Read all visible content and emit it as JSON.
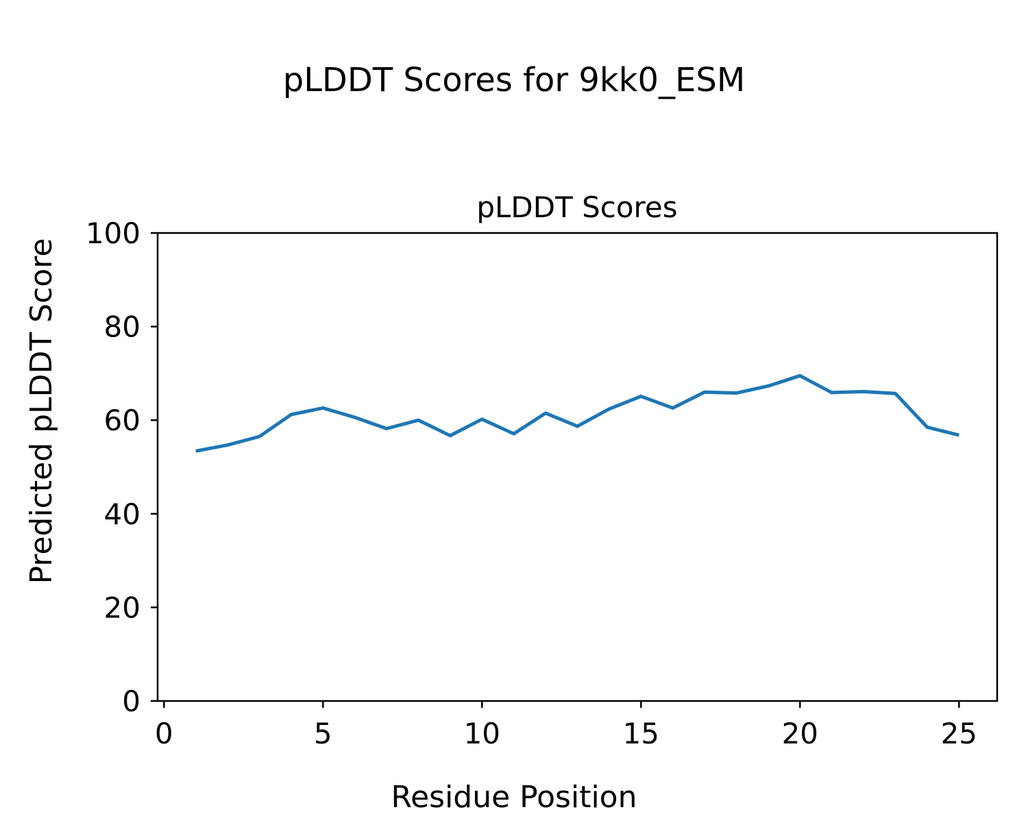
{
  "figure": {
    "suptitle": "pLDDT Scores for 9kk0_ESM",
    "background_color": "#ffffff",
    "text_color": "#000000"
  },
  "chart_data": {
    "type": "line",
    "title": "pLDDT Scores",
    "xlabel": "Residue Position",
    "ylabel": "Predicted pLDDT Score",
    "x": [
      1,
      2,
      3,
      4,
      5,
      6,
      7,
      8,
      9,
      10,
      11,
      12,
      13,
      14,
      15,
      16,
      17,
      18,
      19,
      20,
      21,
      22,
      23,
      24,
      25
    ],
    "y": [
      53.4,
      54.7,
      56.5,
      61.2,
      62.6,
      60.6,
      58.2,
      60.0,
      56.7,
      60.2,
      57.1,
      61.5,
      58.7,
      62.4,
      65.1,
      62.6,
      66.0,
      65.8,
      67.3,
      69.5,
      65.9,
      66.1,
      65.7,
      58.5,
      56.8
    ],
    "series_name": "pLDDT",
    "xlim": [
      -0.2,
      26.2
    ],
    "ylim": [
      0,
      100
    ],
    "xticks": [
      0,
      5,
      10,
      15,
      20,
      25
    ],
    "yticks": [
      0,
      20,
      40,
      60,
      80,
      100
    ],
    "line_color": "#1f77b4",
    "line_width": 5,
    "spine_color": "#000000",
    "grid": false,
    "legend": "none"
  }
}
